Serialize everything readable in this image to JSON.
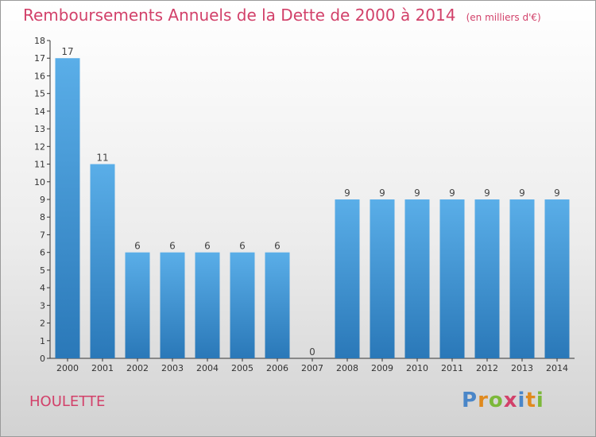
{
  "header": {
    "title": "Remboursements Annuels de la Dette de 2000 à 2014",
    "subtitle": "(en milliers d'€)"
  },
  "footer": {
    "commune": "HOULETTE",
    "logo": "Proxiti"
  },
  "colors": {
    "title": "#d2416a",
    "bar_top": "#5aaee8",
    "bar_bottom": "#2a78b8",
    "axis": "#333333",
    "grid": "#cfcfcf"
  },
  "chart_data": {
    "type": "bar",
    "categories": [
      "2000",
      "2001",
      "2002",
      "2003",
      "2004",
      "2005",
      "2006",
      "2007",
      "2008",
      "2009",
      "2010",
      "2011",
      "2012",
      "2013",
      "2014"
    ],
    "values": [
      17,
      11,
      6,
      6,
      6,
      6,
      6,
      0,
      9,
      9,
      9,
      9,
      9,
      9,
      9
    ],
    "data_labels": [
      "17",
      "11",
      "6",
      "6",
      "6",
      "6",
      "6",
      "0",
      "9",
      "9",
      "9",
      "9",
      "9",
      "9",
      "9"
    ],
    "y_ticks": [
      "0",
      "1",
      "2",
      "3",
      "4",
      "5",
      "6",
      "7",
      "8",
      "9",
      "10",
      "11",
      "12",
      "13",
      "14",
      "15",
      "16",
      "17",
      "18"
    ],
    "ylim": [
      0,
      18
    ],
    "title": "Remboursements Annuels de la Dette de 2000 à 2014",
    "subtitle": "(en milliers d'€)",
    "xlabel": "",
    "ylabel": "",
    "grid": false,
    "legend": "none"
  }
}
